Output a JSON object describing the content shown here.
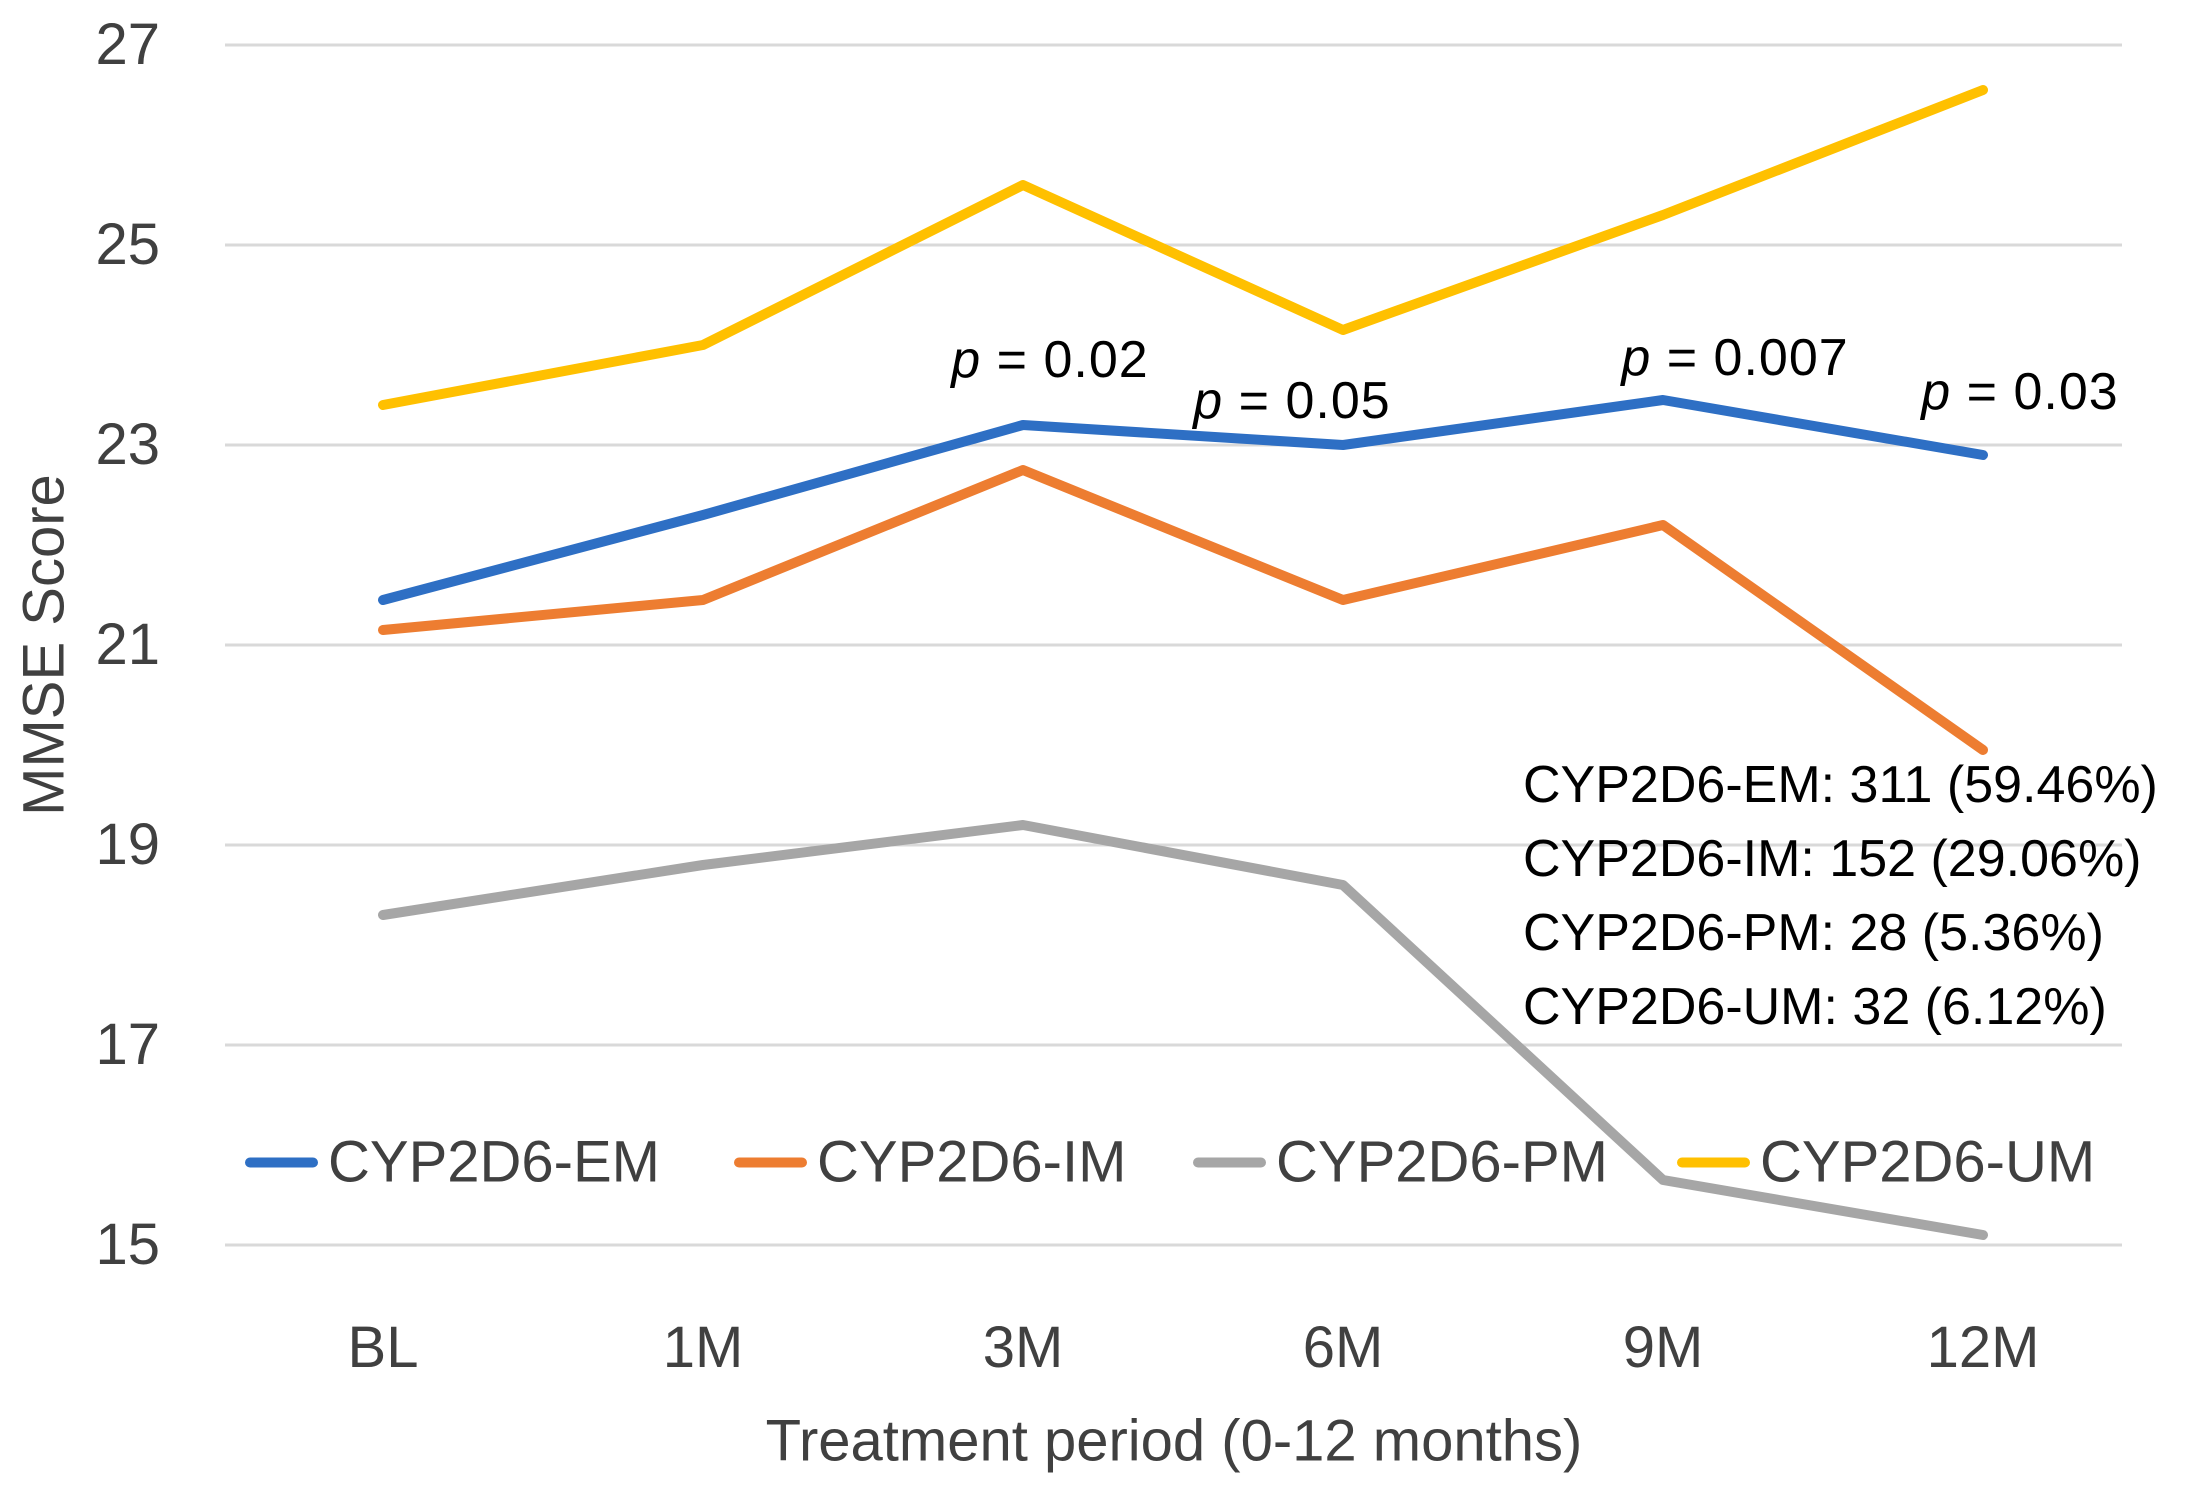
{
  "chart_data": {
    "type": "line",
    "title": "",
    "xlabel": "Treatment period (0-12 months)",
    "ylabel": "MMSE Score",
    "categories": [
      "BL",
      "1M",
      "3M",
      "6M",
      "9M",
      "12M"
    ],
    "yticks": [
      27,
      25,
      23,
      21,
      19,
      17,
      15
    ],
    "ylim": [
      15,
      27
    ],
    "grid": "horizontal-only",
    "gridline_color": "#D9D9D9",
    "legend_position": "bottom-inside",
    "series": [
      {
        "name": "CYP2D6-EM",
        "color": "#2E6FC4",
        "values": [
          21.45,
          22.3,
          23.2,
          23.0,
          23.45,
          22.9
        ]
      },
      {
        "name": "CYP2D6-IM",
        "color": "#ED7D31",
        "values": [
          21.15,
          21.45,
          22.75,
          21.45,
          22.2,
          19.95
        ]
      },
      {
        "name": "CYP2D6-PM",
        "color": "#A6A6A6",
        "values": [
          18.3,
          18.8,
          19.2,
          18.6,
          15.65,
          15.1
        ]
      },
      {
        "name": "CYP2D6-UM",
        "color": "#FFC000",
        "values": [
          23.4,
          24.0,
          25.6,
          24.15,
          25.3,
          26.55
        ]
      }
    ],
    "p_annotations": [
      "p = 0.02",
      "p = 0.05",
      "p = 0.007",
      "p = 0.03"
    ],
    "group_counts": [
      "CYP2D6-EM: 311 (59.46%)",
      "CYP2D6-IM: 152 (29.06%)",
      "CYP2D6-PM: 28 (5.36%)",
      "CYP2D6-UM: 32 (6.12%)"
    ]
  }
}
